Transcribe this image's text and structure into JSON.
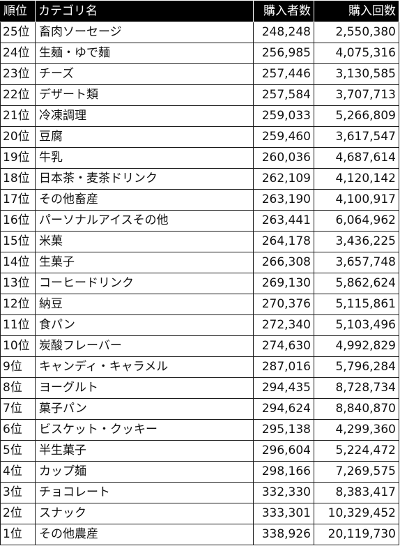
{
  "table": {
    "headers": {
      "rank": "順位",
      "category": "カテゴリ名",
      "buyers": "購入者数",
      "purchases": "購入回数"
    },
    "rows": [
      {
        "rank": "25位",
        "category": "畜肉ソーセージ",
        "buyers": "248,248",
        "purchases": "2,550,380"
      },
      {
        "rank": "24位",
        "category": "生麺・ゆで麺",
        "buyers": "256,985",
        "purchases": "4,075,316"
      },
      {
        "rank": "23位",
        "category": "チーズ",
        "buyers": "257,446",
        "purchases": "3,130,585"
      },
      {
        "rank": "22位",
        "category": "デザート類",
        "buyers": "257,584",
        "purchases": "3,707,713"
      },
      {
        "rank": "21位",
        "category": "冷凍調理",
        "buyers": "259,033",
        "purchases": "5,266,809"
      },
      {
        "rank": "20位",
        "category": "豆腐",
        "buyers": "259,460",
        "purchases": "3,617,547"
      },
      {
        "rank": "19位",
        "category": "牛乳",
        "buyers": "260,036",
        "purchases": "4,687,614"
      },
      {
        "rank": "18位",
        "category": "日本茶・麦茶ドリンク",
        "buyers": "262,109",
        "purchases": "4,120,142"
      },
      {
        "rank": "17位",
        "category": "その他畜産",
        "buyers": "263,190",
        "purchases": "4,100,917"
      },
      {
        "rank": "16位",
        "category": "パーソナルアイスその他",
        "buyers": "263,441",
        "purchases": "6,064,962"
      },
      {
        "rank": "15位",
        "category": "米菓",
        "buyers": "264,178",
        "purchases": "3,436,225"
      },
      {
        "rank": "14位",
        "category": "生菓子",
        "buyers": "266,308",
        "purchases": "3,657,748"
      },
      {
        "rank": "13位",
        "category": "コーヒードリンク",
        "buyers": "269,130",
        "purchases": "5,862,624"
      },
      {
        "rank": "12位",
        "category": "納豆",
        "buyers": "270,376",
        "purchases": "5,115,861"
      },
      {
        "rank": "11位",
        "category": "食パン",
        "buyers": "272,340",
        "purchases": "5,103,496"
      },
      {
        "rank": "10位",
        "category": "炭酸フレーバー",
        "buyers": "274,630",
        "purchases": "4,992,829"
      },
      {
        "rank": "9位",
        "category": "キャンディ・キャラメル",
        "buyers": "287,016",
        "purchases": "5,796,284"
      },
      {
        "rank": "8位",
        "category": "ヨーグルト",
        "buyers": "294,435",
        "purchases": "8,728,734"
      },
      {
        "rank": "7位",
        "category": "菓子パン",
        "buyers": "294,624",
        "purchases": "8,840,870"
      },
      {
        "rank": "6位",
        "category": "ビスケット・クッキー",
        "buyers": "295,138",
        "purchases": "4,299,360"
      },
      {
        "rank": "5位",
        "category": "半生菓子",
        "buyers": "296,604",
        "purchases": "5,224,472"
      },
      {
        "rank": "4位",
        "category": "カップ麺",
        "buyers": "298,166",
        "purchases": "7,269,575"
      },
      {
        "rank": "3位",
        "category": "チョコレート",
        "buyers": "332,330",
        "purchases": "8,383,417"
      },
      {
        "rank": "2位",
        "category": "スナック",
        "buyers": "333,301",
        "purchases": "10,329,452"
      },
      {
        "rank": "1位",
        "category": "その他農産",
        "buyers": "338,926",
        "purchases": "20,119,730"
      }
    ]
  }
}
